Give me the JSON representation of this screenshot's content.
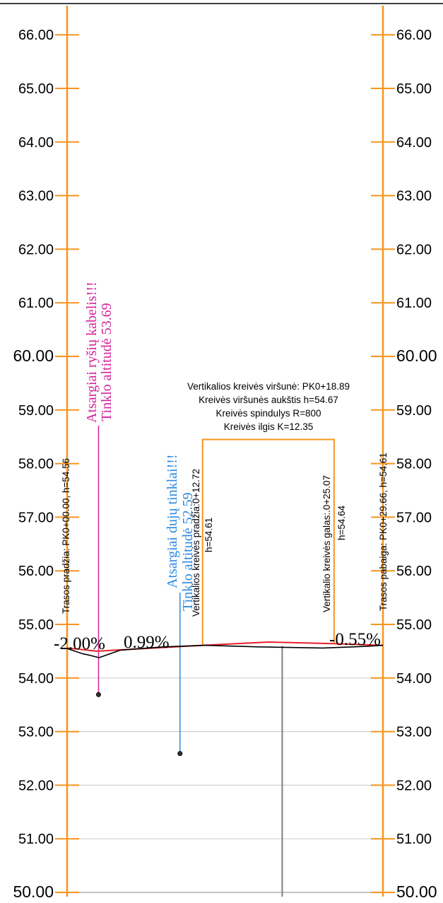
{
  "axis": {
    "y_min": 50,
    "y_max": 66,
    "ticks_left": [
      "50.00",
      "51.00",
      "52.00",
      "53.00",
      "54.00",
      "55.00",
      "56.00",
      "57.00",
      "58.00",
      "59.00",
      "60.00",
      "61.00",
      "62.00",
      "63.00",
      "64.00",
      "65.00",
      "66.00"
    ],
    "ticks_right": [
      "50.00",
      "51.00",
      "52.00",
      "53.00",
      "54.00",
      "55.00",
      "56.00",
      "57.00",
      "58.00",
      "59.00",
      "60.00",
      "61.00",
      "62.00",
      "63.00",
      "64.00",
      "65.00",
      "66.00"
    ],
    "emphasized_ticks": [
      50,
      60
    ],
    "gridlines_at": [
      51,
      52,
      53,
      54
    ],
    "x_range": [
      0,
      29.66
    ]
  },
  "route": {
    "start_label": "Trasos pradžia: PK0+00.00, h=54.56",
    "end_label": "Trasos pabaiga: PK0+29.66, h=54.61"
  },
  "vertical_curve": {
    "label_lines": [
      "Vertikalios kreivės viršunė: PK0+18.89",
      "Kreivės viršunės aukštis h=54.67",
      "Kreivės spindulys R=800",
      "Kreivės ilgis K=12.35"
    ],
    "start_label": "Vertikalios kreivės pradžia:0+12.72",
    "start_h": "h=54.61",
    "end_label": "Vertikalio kreivės galas:.0+25.07",
    "end_h": "h=54.64",
    "bracket_top": 58.45,
    "pk_start": 12.72,
    "pk_end": 25.07
  },
  "grades": {
    "g1": "-2.00%",
    "g2": "0.99%",
    "g3": "-0.55%"
  },
  "warnings": {
    "cable_line1": "Atsargiai ryšių kabelis!!!",
    "cable_line2": "Tinklo altitudė 53.69",
    "cable_level": 53.69,
    "cable_pk": 2.95,
    "gas_line1": "Atsargiai dujų tinklai!!!",
    "gas_line2": "Tinklo altitudė 52.59",
    "gas_level": 52.59,
    "gas_pk": 10.6
  },
  "marker": {
    "pk": 20.2
  },
  "colors": {
    "axis": "#f7941d",
    "design_line": "#e8202a",
    "ground_line": "#000000",
    "cable": "#d4219b",
    "gas": "#2b8ae0",
    "grid": "#d0d0d0",
    "marker": "#808080"
  },
  "chart_data": {
    "type": "line",
    "xlabel": "",
    "ylabel": "",
    "ylim": [
      50,
      66
    ],
    "series": [
      {
        "x": [
          0,
          2.8,
          12.72,
          18.89,
          25.07,
          29.66
        ],
        "y": [
          54.56,
          54.5,
          54.61,
          54.67,
          54.64,
          54.61
        ]
      },
      {
        "x": [
          0,
          1.5,
          2.0,
          3.0,
          5.0,
          9.0,
          13.0,
          18.0,
          24.0,
          28.0,
          29.66
        ],
        "y": [
          54.55,
          54.45,
          54.43,
          54.38,
          54.52,
          54.58,
          54.61,
          54.58,
          54.56,
          54.59,
          54.61
        ]
      }
    ]
  }
}
